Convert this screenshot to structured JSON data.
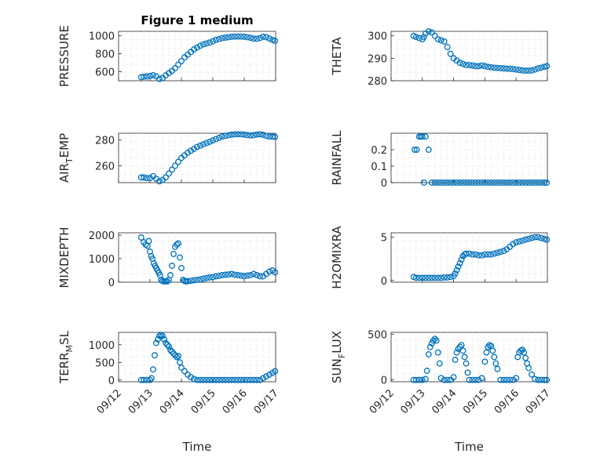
{
  "figure_title": "Figure 1 medium",
  "x_ticks": [
    "09/12",
    "09/13",
    "09/14",
    "09/15",
    "09/16",
    "09/17"
  ],
  "xlabel": "Time",
  "chart_data": [
    {
      "type": "scatter",
      "id": "pressure",
      "title": "Figure 1 medium",
      "ylabel": "PRESSURE",
      "ylabel_sub": "",
      "ylim": [
        500,
        1050
      ],
      "yticks": [
        600,
        800,
        1000
      ],
      "x": [
        0.72,
        0.8,
        0.9,
        1.0,
        1.1,
        1.2,
        1.3,
        1.4,
        1.5,
        1.6,
        1.7,
        1.8,
        1.9,
        2.0,
        2.1,
        2.2,
        2.3,
        2.4,
        2.5,
        2.6,
        2.7,
        2.8,
        2.9,
        3.0,
        3.1,
        3.2,
        3.3,
        3.4,
        3.5,
        3.6,
        3.7,
        3.8,
        3.9,
        4.0,
        4.1,
        4.2,
        4.3,
        4.4,
        4.5,
        4.6,
        4.7,
        4.8,
        4.9,
        4.98
      ],
      "y": [
        540,
        545,
        548,
        553,
        562,
        548,
        520,
        530,
        560,
        585,
        610,
        640,
        680,
        720,
        760,
        790,
        820,
        850,
        870,
        890,
        905,
        915,
        925,
        940,
        955,
        965,
        975,
        980,
        985,
        990,
        992,
        993,
        992,
        990,
        985,
        978,
        970,
        968,
        975,
        990,
        985,
        970,
        955,
        945
      ]
    },
    {
      "type": "scatter",
      "id": "theta",
      "title": "",
      "ylabel": "THETA",
      "ylabel_sub": "",
      "ylim": [
        280,
        302
      ],
      "yticks": [
        280,
        290,
        300
      ],
      "x": [
        0.72,
        0.8,
        0.9,
        1.0,
        1.05,
        1.1,
        1.2,
        1.3,
        1.4,
        1.5,
        1.6,
        1.7,
        1.8,
        1.9,
        2.0,
        2.1,
        2.2,
        2.3,
        2.4,
        2.5,
        2.6,
        2.7,
        2.8,
        2.9,
        3.0,
        3.1,
        3.2,
        3.3,
        3.4,
        3.5,
        3.6,
        3.7,
        3.8,
        3.9,
        4.0,
        4.1,
        4.2,
        4.3,
        4.4,
        4.5,
        4.6,
        4.7,
        4.8,
        4.9,
        4.98
      ],
      "y": [
        300,
        299.5,
        299,
        298.5,
        299.5,
        301,
        302,
        301.5,
        300,
        298.5,
        298,
        297.5,
        295,
        292,
        290,
        289,
        288,
        287.5,
        287,
        287,
        286.8,
        286.5,
        286.5,
        286.8,
        286.5,
        286.2,
        286,
        285.8,
        285.7,
        285.6,
        285.5,
        285.4,
        285.3,
        285.2,
        285,
        284.8,
        284.6,
        284.5,
        284.5,
        284.6,
        285,
        285.5,
        285.8,
        286.2,
        286.5
      ]
    },
    {
      "type": "scatter",
      "id": "air_temp",
      "title": "",
      "ylabel": "AIR",
      "ylabel_sub": "T",
      "ylabel_tail": "EMP",
      "ylim": [
        247,
        285
      ],
      "yticks": [
        260,
        280
      ],
      "x": [
        0.72,
        0.8,
        0.9,
        1.0,
        1.1,
        1.2,
        1.3,
        1.4,
        1.5,
        1.6,
        1.7,
        1.8,
        1.9,
        2.0,
        2.1,
        2.2,
        2.3,
        2.4,
        2.5,
        2.6,
        2.7,
        2.8,
        2.9,
        3.0,
        3.1,
        3.2,
        3.3,
        3.4,
        3.5,
        3.6,
        3.7,
        3.8,
        3.9,
        4.0,
        4.1,
        4.2,
        4.3,
        4.4,
        4.5,
        4.6,
        4.7,
        4.8,
        4.9,
        4.98
      ],
      "y": [
        251,
        251,
        250.5,
        250.5,
        252,
        250,
        248,
        249,
        251,
        254,
        257,
        260,
        263,
        266,
        268,
        270,
        271.5,
        273,
        274.5,
        275.5,
        276.5,
        277.5,
        278.5,
        279.5,
        280.5,
        281.5,
        282.5,
        283,
        283.5,
        284,
        284.2,
        284.3,
        284.2,
        284,
        283.6,
        283.3,
        283.5,
        284,
        284.2,
        283.8,
        283,
        282.5,
        282.3,
        282.2
      ]
    },
    {
      "type": "scatter",
      "id": "rainfall",
      "title": "",
      "ylabel": "RAINFALL",
      "ylabel_sub": "",
      "ylim": [
        0,
        0.3
      ],
      "yticks": [
        0,
        0.1,
        0.2
      ],
      "x": [
        0.75,
        0.82,
        0.9,
        0.95,
        1.0,
        1.05,
        1.1,
        1.2,
        1.3,
        1.4,
        1.5,
        1.6,
        1.7,
        1.8,
        1.9,
        2.0,
        2.1,
        2.2,
        2.3,
        2.4,
        2.5,
        2.6,
        2.7,
        2.8,
        2.9,
        3.0,
        3.1,
        3.2,
        3.3,
        3.4,
        3.5,
        3.6,
        3.7,
        3.8,
        3.9,
        4.0,
        4.1,
        4.2,
        4.3,
        4.4,
        4.5,
        4.6,
        4.7,
        4.8,
        4.9,
        4.98
      ],
      "y": [
        0.2,
        0.2,
        0.28,
        0.28,
        0.28,
        0,
        0.28,
        0.2,
        0,
        0,
        0,
        0,
        0,
        0,
        0,
        0,
        0,
        0,
        0,
        0,
        0,
        0,
        0,
        0,
        0,
        0,
        0,
        0,
        0,
        0,
        0,
        0,
        0,
        0,
        0,
        0,
        0,
        0,
        0,
        0,
        0,
        0,
        0,
        0,
        0,
        0
      ]
    },
    {
      "type": "scatter",
      "id": "mixdepth",
      "title": "",
      "ylabel": "MIXDEPTH",
      "ylabel_sub": "",
      "ylim": [
        0,
        2100
      ],
      "yticks": [
        0,
        1000,
        2000
      ],
      "x": [
        0.72,
        0.8,
        0.86,
        0.92,
        0.96,
        1.0,
        1.04,
        1.08,
        1.12,
        1.16,
        1.2,
        1.24,
        1.28,
        1.32,
        1.36,
        1.4,
        1.45,
        1.5,
        1.55,
        1.6,
        1.65,
        1.7,
        1.75,
        1.8,
        1.85,
        1.9,
        1.95,
        2.0,
        2.05,
        2.1,
        2.15,
        2.2,
        2.3,
        2.4,
        2.5,
        2.6,
        2.7,
        2.8,
        2.9,
        3.0,
        3.1,
        3.2,
        3.3,
        3.4,
        3.5,
        3.6,
        3.7,
        3.8,
        3.9,
        4.0,
        4.1,
        4.2,
        4.3,
        4.4,
        4.5,
        4.6,
        4.7,
        4.8,
        4.9,
        4.98
      ],
      "y": [
        1900,
        1700,
        1600,
        1550,
        1750,
        1300,
        1100,
        1000,
        800,
        700,
        600,
        500,
        400,
        300,
        100,
        50,
        30,
        40,
        30,
        100,
        300,
        700,
        1200,
        1500,
        1600,
        1650,
        1050,
        600,
        100,
        50,
        30,
        40,
        60,
        80,
        100,
        120,
        150,
        180,
        200,
        220,
        250,
        270,
        300,
        320,
        330,
        350,
        320,
        300,
        280,
        260,
        280,
        300,
        350,
        300,
        250,
        250,
        350,
        450,
        500,
        420
      ]
    },
    {
      "type": "scatter",
      "id": "h2omixra",
      "title": "",
      "ylabel": "H2OMIXRA",
      "ylabel_sub": "",
      "ylim": [
        -0.2,
        5.5
      ],
      "yticks": [
        0,
        5
      ],
      "x": [
        0.72,
        0.8,
        0.9,
        1.0,
        1.1,
        1.2,
        1.3,
        1.4,
        1.5,
        1.6,
        1.7,
        1.8,
        1.9,
        2.0,
        2.05,
        2.1,
        2.15,
        2.2,
        2.25,
        2.3,
        2.35,
        2.4,
        2.5,
        2.6,
        2.7,
        2.8,
        2.9,
        3.0,
        3.1,
        3.2,
        3.3,
        3.4,
        3.5,
        3.6,
        3.7,
        3.8,
        3.9,
        4.0,
        4.1,
        4.2,
        4.3,
        4.4,
        4.5,
        4.6,
        4.7,
        4.8,
        4.9,
        4.98
      ],
      "y": [
        0.4,
        0.3,
        0.3,
        0.3,
        0.3,
        0.3,
        0.3,
        0.3,
        0.3,
        0.3,
        0.35,
        0.35,
        0.4,
        0.5,
        0.8,
        1.2,
        1.6,
        2.0,
        2.4,
        2.8,
        3.0,
        3.1,
        3.1,
        3.0,
        3.0,
        2.9,
        2.9,
        3.0,
        3.0,
        3.0,
        3.1,
        3.2,
        3.3,
        3.4,
        3.6,
        3.9,
        4.2,
        4.4,
        4.5,
        4.6,
        4.7,
        4.8,
        4.9,
        5.0,
        5.0,
        4.9,
        4.8,
        4.7
      ]
    },
    {
      "type": "scatter",
      "id": "terr_msl",
      "title": "",
      "ylabel": "TERR",
      "ylabel_sub": "M",
      "ylabel_tail": "SL",
      "ylim": [
        -50,
        1350
      ],
      "yticks": [
        0,
        500,
        1000
      ],
      "x": [
        0.72,
        0.8,
        0.9,
        1.0,
        1.05,
        1.1,
        1.15,
        1.2,
        1.25,
        1.3,
        1.35,
        1.4,
        1.45,
        1.5,
        1.55,
        1.6,
        1.65,
        1.7,
        1.75,
        1.8,
        1.85,
        1.9,
        1.95,
        2.0,
        2.1,
        2.2,
        2.3,
        2.4,
        2.5,
        2.6,
        2.7,
        2.8,
        2.9,
        3.0,
        3.1,
        3.2,
        3.3,
        3.4,
        3.5,
        3.6,
        3.7,
        3.8,
        3.9,
        4.0,
        4.1,
        4.2,
        4.3,
        4.4,
        4.5,
        4.6,
        4.7,
        4.8,
        4.9,
        4.98
      ],
      "y": [
        0,
        0,
        0,
        0,
        50,
        300,
        700,
        1050,
        1150,
        1250,
        1280,
        1250,
        1150,
        1050,
        1000,
        950,
        850,
        800,
        750,
        700,
        650,
        680,
        500,
        350,
        250,
        150,
        80,
        30,
        0,
        0,
        0,
        0,
        0,
        0,
        0,
        0,
        0,
        0,
        0,
        0,
        0,
        0,
        0,
        0,
        0,
        0,
        0,
        0,
        0,
        50,
        100,
        150,
        200,
        250
      ]
    },
    {
      "type": "scatter",
      "id": "sunflux",
      "title": "",
      "ylabel": "SUN",
      "ylabel_sub": "F",
      "ylabel_tail": "LUX",
      "ylim": [
        -20,
        520
      ],
      "yticks": [
        0,
        500
      ],
      "x": [
        0.72,
        0.8,
        0.9,
        1.0,
        1.1,
        1.15,
        1.2,
        1.25,
        1.3,
        1.35,
        1.4,
        1.45,
        1.5,
        1.55,
        1.6,
        1.7,
        1.8,
        1.9,
        2.0,
        2.05,
        2.1,
        2.15,
        2.2,
        2.25,
        2.3,
        2.35,
        2.4,
        2.45,
        2.5,
        2.6,
        2.7,
        2.8,
        2.9,
        3.0,
        3.05,
        3.1,
        3.15,
        3.2,
        3.25,
        3.3,
        3.35,
        3.4,
        3.5,
        3.6,
        3.7,
        3.8,
        3.9,
        4.0,
        4.05,
        4.1,
        4.15,
        4.2,
        4.25,
        4.3,
        4.35,
        4.4,
        4.5,
        4.6,
        4.7,
        4.8,
        4.9,
        4.98
      ],
      "y": [
        0,
        0,
        0,
        0,
        10,
        100,
        280,
        360,
        400,
        430,
        450,
        430,
        300,
        180,
        20,
        0,
        0,
        0,
        30,
        220,
        300,
        340,
        360,
        380,
        320,
        250,
        180,
        80,
        0,
        0,
        0,
        0,
        20,
        200,
        300,
        360,
        380,
        370,
        320,
        250,
        180,
        120,
        0,
        0,
        0,
        0,
        0,
        20,
        250,
        300,
        320,
        330,
        300,
        240,
        180,
        130,
        60,
        10,
        0,
        0,
        0,
        0
      ]
    }
  ]
}
